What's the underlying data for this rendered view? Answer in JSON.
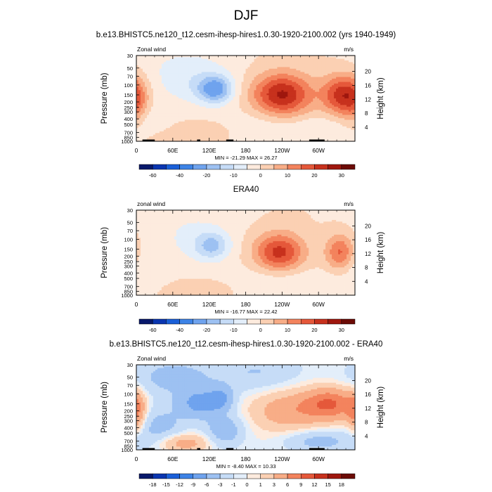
{
  "page_title": "DJF",
  "colors": {
    "zonal_palette": [
      "#08196b",
      "#0a35b0",
      "#1a5fd8",
      "#3d83e6",
      "#6fa3ee",
      "#9dc1f2",
      "#c6dcf7",
      "#e3eefa",
      "#fdebde",
      "#fbd0b3",
      "#f8ad87",
      "#f3835d",
      "#e5583a",
      "#c7311d",
      "#9f170e",
      "#6c0b06"
    ],
    "diff_palette": [
      "#08196b",
      "#0a35b0",
      "#1a5fd8",
      "#3d83e6",
      "#6fa3ee",
      "#9dc1f2",
      "#c6dcf7",
      "#e3eefa",
      "#fdebde",
      "#fbd0b3",
      "#f8ad87",
      "#f3835d",
      "#e5583a",
      "#c7311d",
      "#9f170e",
      "#6c0b06"
    ],
    "topography": "#000000"
  },
  "chart_data": [
    {
      "type": "heatmap",
      "title": "b.e13.BHISTC5.ne120_t12.cesm-ihesp-hires1.0.30-1920-2100.002 (yrs 1940-1949)",
      "left_label": "Zonal wind",
      "right_label": "m/s",
      "ylabel": "Pressure (mb)",
      "y2label": "Height (km)",
      "x_ticks": [
        "0",
        "60E",
        "120E",
        "180",
        "120W",
        "60W"
      ],
      "x_tick_lon": [
        0,
        60,
        120,
        180,
        240,
        300
      ],
      "xlim": [
        0,
        360
      ],
      "y_ticks": [
        "30",
        "50",
        "70",
        "100",
        "150",
        "200",
        "250",
        "300",
        "400",
        "500",
        "700",
        "850",
        "1000"
      ],
      "y_tick_p": [
        30,
        50,
        70,
        100,
        150,
        200,
        250,
        300,
        400,
        500,
        700,
        850,
        1000
      ],
      "ylim": [
        1000,
        30
      ],
      "y2_ticks": [
        "20",
        "16",
        "12",
        "8",
        "4"
      ],
      "y2_tick_km": [
        20,
        16,
        12,
        8,
        4
      ],
      "stats": "MIN = -21.29  MAX = 26.27",
      "min": -21.29,
      "max": 26.27,
      "colorbar_labels": [
        "-60",
        "-40",
        "-20",
        "-10",
        "0",
        "10",
        "20",
        "30"
      ],
      "colorbar_levels": [
        -70,
        -60,
        -50,
        -40,
        -30,
        -20,
        -15,
        -10,
        -5,
        0,
        5,
        10,
        15,
        20,
        25,
        30
      ],
      "features": [
        {
          "lon": 240,
          "p": 150,
          "amp": 26,
          "dlon": 34,
          "dlogp": 0.27
        },
        {
          "lon": 338,
          "p": 150,
          "amp": 22,
          "dlon": 22,
          "dlogp": 0.25
        },
        {
          "lon": 0,
          "p": 200,
          "amp": 9,
          "dlon": 14,
          "dlogp": 0.3
        },
        {
          "lon": 130,
          "p": 120,
          "amp": -21,
          "dlon": 20,
          "dlogp": 0.17
        },
        {
          "lon": 90,
          "p": 100,
          "amp": -7,
          "dlon": 45,
          "dlogp": 0.28
        },
        {
          "lon": 80,
          "p": 40,
          "amp": -4,
          "dlon": 60,
          "dlogp": 0.25
        },
        {
          "lon": 110,
          "p": 700,
          "amp": 5,
          "dlon": 28,
          "dlogp": 0.12
        },
        {
          "lon": 50,
          "p": 850,
          "amp": 4,
          "dlon": 25,
          "dlogp": 0.1
        },
        {
          "lon": 300,
          "p": 600,
          "amp": -5,
          "dlon": 45,
          "dlogp": 0.18
        },
        {
          "lon": 200,
          "p": 500,
          "amp": -4,
          "dlon": 40,
          "dlogp": 0.22
        },
        {
          "lon": 25,
          "p": 450,
          "amp": -4,
          "dlon": 18,
          "dlogp": 0.22
        }
      ],
      "topography": [
        {
          "lon0": 10,
          "lon1": 30
        },
        {
          "lon0": 100,
          "lon1": 105
        },
        {
          "lon0": 148,
          "lon1": 160
        },
        {
          "lon0": 285,
          "lon1": 310
        }
      ]
    },
    {
      "type": "heatmap",
      "title": "ERA40",
      "left_label": "zonal wind",
      "right_label": "m/s",
      "ylabel": "Pressure (mb)",
      "y2label": "Height (km)",
      "x_ticks": [
        "0",
        "60E",
        "120E",
        "180",
        "120W",
        "60W"
      ],
      "x_tick_lon": [
        0,
        60,
        120,
        180,
        240,
        300
      ],
      "xlim": [
        0,
        360
      ],
      "y_ticks": [
        "30",
        "50",
        "70",
        "100",
        "150",
        "200",
        "250",
        "300",
        "400",
        "500",
        "700",
        "850",
        "1000"
      ],
      "y_tick_p": [
        30,
        50,
        70,
        100,
        150,
        200,
        250,
        300,
        400,
        500,
        700,
        850,
        1000
      ],
      "ylim": [
        1000,
        30
      ],
      "y2_ticks": [
        "20",
        "16",
        "12",
        "8",
        "4"
      ],
      "y2_tick_km": [
        20,
        16,
        12,
        8,
        4
      ],
      "stats": "MIN = -16.77  MAX = 22.42",
      "min": -16.77,
      "max": 22.42,
      "colorbar_labels": [
        "-60",
        "-40",
        "-20",
        "-10",
        "0",
        "10",
        "20",
        "30"
      ],
      "colorbar_levels": [
        -70,
        -60,
        -50,
        -40,
        -30,
        -20,
        -15,
        -10,
        -5,
        0,
        5,
        10,
        15,
        20,
        25,
        30
      ],
      "features": [
        {
          "lon": 235,
          "p": 170,
          "amp": 22,
          "dlon": 28,
          "dlogp": 0.24
        },
        {
          "lon": 335,
          "p": 170,
          "amp": 16,
          "dlon": 16,
          "dlogp": 0.22
        },
        {
          "lon": 125,
          "p": 130,
          "amp": -14,
          "dlon": 20,
          "dlogp": 0.18
        },
        {
          "lon": 90,
          "p": 120,
          "amp": -5,
          "dlon": 45,
          "dlogp": 0.28
        },
        {
          "lon": 80,
          "p": 40,
          "amp": -3,
          "dlon": 60,
          "dlogp": 0.25
        },
        {
          "lon": 10,
          "p": 350,
          "amp": -4,
          "dlon": 25,
          "dlogp": 0.2
        },
        {
          "lon": 210,
          "p": 600,
          "amp": -4,
          "dlon": 45,
          "dlogp": 0.22
        },
        {
          "lon": 290,
          "p": 650,
          "amp": -4,
          "dlon": 40,
          "dlogp": 0.18
        },
        {
          "lon": 115,
          "p": 800,
          "amp": 3,
          "dlon": 40,
          "dlogp": 0.12
        }
      ],
      "topography": []
    },
    {
      "type": "heatmap",
      "title": "b.e13.BHISTC5.ne120_t12.cesm-ihesp-hires1.0.30-1920-2100.002 - ERA40",
      "left_label": "Zonal wind",
      "right_label": "m/s",
      "ylabel": "Pressure (mb)",
      "y2label": "Height (km)",
      "x_ticks": [
        "0",
        "60E",
        "120E",
        "180",
        "120W",
        "60W"
      ],
      "x_tick_lon": [
        0,
        60,
        120,
        180,
        240,
        300
      ],
      "xlim": [
        0,
        360
      ],
      "y_ticks": [
        "30",
        "50",
        "70",
        "100",
        "150",
        "200",
        "250",
        "300",
        "400",
        "500",
        "700",
        "850",
        "1000"
      ],
      "y_tick_p": [
        30,
        50,
        70,
        100,
        150,
        200,
        250,
        300,
        400,
        500,
        700,
        850,
        1000
      ],
      "ylim": [
        1000,
        30
      ],
      "y2_ticks": [
        "20",
        "16",
        "12",
        "8",
        "4"
      ],
      "y2_tick_km": [
        20,
        16,
        12,
        8,
        4
      ],
      "stats": "MIN = -8.40  MAX = 10.33",
      "min": -8.4,
      "max": 10.33,
      "colorbar_labels": [
        "-18",
        "-15",
        "-12",
        "-9",
        "-6",
        "-3",
        "-1",
        "0",
        "1",
        "3",
        "6",
        "9",
        "12",
        "15",
        "18"
      ],
      "colorbar_levels": [
        -21,
        -18,
        -15,
        -12,
        -9,
        -6,
        -3,
        -1,
        0,
        1,
        3,
        6,
        9,
        12,
        15,
        18
      ],
      "features": [
        {
          "lon": 320,
          "p": 150,
          "amp": 9,
          "dlon": 30,
          "dlogp": 0.2
        },
        {
          "lon": 250,
          "p": 200,
          "amp": 5,
          "dlon": 40,
          "dlogp": 0.25
        },
        {
          "lon": 0,
          "p": 220,
          "amp": 6,
          "dlon": 10,
          "dlogp": 0.25
        },
        {
          "lon": 105,
          "p": 150,
          "amp": -7,
          "dlon": 25,
          "dlogp": 0.18
        },
        {
          "lon": 140,
          "p": 120,
          "amp": -5,
          "dlon": 15,
          "dlogp": 0.15
        },
        {
          "lon": 60,
          "p": 50,
          "amp": -4,
          "dlon": 50,
          "dlogp": 0.25
        },
        {
          "lon": 200,
          "p": 40,
          "amp": -3,
          "dlon": 50,
          "dlogp": 0.25
        },
        {
          "lon": 40,
          "p": 400,
          "amp": -4,
          "dlon": 30,
          "dlogp": 0.28
        },
        {
          "lon": 145,
          "p": 450,
          "amp": -5,
          "dlon": 22,
          "dlogp": 0.2
        },
        {
          "lon": 75,
          "p": 750,
          "amp": 5,
          "dlon": 30,
          "dlogp": 0.12
        },
        {
          "lon": 300,
          "p": 700,
          "amp": -4,
          "dlon": 40,
          "dlogp": 0.15
        }
      ],
      "topography": [
        {
          "lon0": 10,
          "lon1": 30
        },
        {
          "lon0": 100,
          "lon1": 105
        },
        {
          "lon0": 148,
          "lon1": 160
        },
        {
          "lon0": 285,
          "lon1": 310
        }
      ]
    }
  ]
}
